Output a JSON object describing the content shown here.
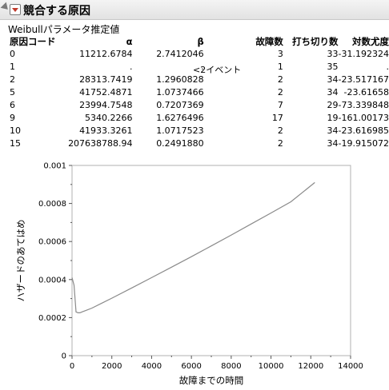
{
  "report": {
    "title": "競合する原因",
    "table_title": "Weibullパラメータ推定値",
    "columns": [
      "原因コード",
      "α",
      "β",
      "故障数",
      "打ち切り数",
      "対数尤度"
    ],
    "rows": [
      [
        "0",
        "11212.6784",
        "2.7412046",
        "3",
        "33",
        "-31.192324"
      ],
      [
        "1",
        ".",
        ".",
        "1",
        "35",
        "."
      ],
      [
        "2",
        "28313.7419",
        "1.2960828",
        "2",
        "34",
        "-23.517167"
      ],
      [
        "5",
        "41752.4871",
        "1.0737466",
        "2",
        "34",
        "-23.61658"
      ],
      [
        "6",
        "23994.7548",
        "0.7207369",
        "7",
        "29",
        "-73.339848"
      ],
      [
        "9",
        "5340.2266",
        "1.6276496",
        "17",
        "19",
        "-161.00173"
      ],
      [
        "10",
        "41933.3261",
        "1.0717523",
        "2",
        "34",
        "-23.616985"
      ],
      [
        "15",
        "207638788.94",
        "0.2491880",
        "2",
        "34",
        "-19.915072"
      ]
    ],
    "note": "<2イベント"
  },
  "chart_data": {
    "type": "line",
    "xlabel": "故障までの時間",
    "ylabel": "ハザードのあてはめ",
    "xlim": [
      0,
      14000
    ],
    "ylim": [
      0,
      0.001
    ],
    "xticks": [
      "0",
      "2000",
      "4000",
      "6000",
      "8000",
      "10000",
      "12000",
      "14000"
    ],
    "yticks": [
      "0",
      "0.0002",
      "0.0004",
      "0.0006",
      "0.0008",
      "0.001"
    ],
    "series": [
      {
        "color": "#8a8a8a",
        "x": [
          0,
          100,
          200,
          300,
          400,
          500,
          700,
          1000,
          2000,
          3000,
          4000,
          5000,
          6000,
          7000,
          8000,
          9000,
          10000,
          11000,
          12200
        ],
        "y": [
          0.00041,
          0.00037,
          0.00023,
          0.000225,
          0.000225,
          0.00023,
          0.000238,
          0.00025,
          0.000302,
          0.000356,
          0.00041,
          0.000465,
          0.00052,
          0.000577,
          0.000634,
          0.000692,
          0.00075,
          0.000809,
          0.00091
        ]
      }
    ]
  }
}
